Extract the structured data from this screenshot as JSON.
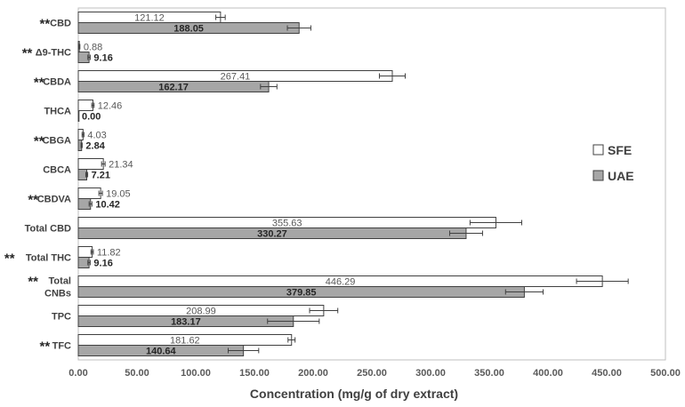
{
  "chart_data": {
    "type": "bar",
    "orientation": "horizontal",
    "categories": [
      {
        "label": "CBD",
        "significant": true
      },
      {
        "label": "Δ9-THC",
        "significant": true
      },
      {
        "label": "CBDA",
        "significant": true
      },
      {
        "label": "THCA",
        "significant": false
      },
      {
        "label": "CBGA",
        "significant": true
      },
      {
        "label": "CBCA",
        "significant": false
      },
      {
        "label": "CBDVA",
        "significant": true
      },
      {
        "label": "Total CBD",
        "significant": false
      },
      {
        "label": "Total THC",
        "significant": true
      },
      {
        "label": "Total\nCNBs",
        "significant": true
      },
      {
        "label": "TPC",
        "significant": false
      },
      {
        "label": "TFC",
        "significant": true
      }
    ],
    "significance_marker": "**",
    "series": [
      {
        "name": "SFE",
        "color": "#ffffff",
        "values": [
          121.12,
          0.88,
          267.41,
          12.46,
          4.03,
          21.34,
          19.05,
          355.63,
          11.82,
          446.29,
          208.99,
          181.62
        ],
        "value_labels": [
          "121.12",
          "0.88",
          "267.41",
          "12.46",
          "4.03",
          "21.34",
          "19.05",
          "355.63",
          "11.82",
          "446.29",
          "208.99",
          "181.62"
        ],
        "errors": [
          4,
          0.5,
          11,
          1,
          0.8,
          1.5,
          1.5,
          22,
          1,
          22,
          12,
          3
        ]
      },
      {
        "name": "UAE",
        "color": "#a6a6a6",
        "values": [
          188.05,
          9.16,
          162.17,
          0.0,
          2.84,
          7.21,
          10.42,
          330.27,
          9.16,
          379.85,
          183.17,
          140.64
        ],
        "value_labels": [
          "188.05",
          "9.16",
          "162.17",
          "0.00",
          "2.84",
          "7.21",
          "10.42",
          "330.27",
          "9.16",
          "379.85",
          "183.17",
          "140.64"
        ],
        "errors": [
          10,
          1,
          7,
          0,
          0.5,
          0.8,
          1.2,
          14,
          1,
          16,
          22,
          13
        ]
      }
    ],
    "xlabel": "Concentration (mg/g of dry extract)",
    "xlim": [
      0,
      500
    ],
    "xticks": [
      "0.00",
      "50.00",
      "100.00",
      "150.00",
      "200.00",
      "250.00",
      "300.00",
      "350.00",
      "400.00",
      "450.00",
      "500.00"
    ],
    "grid": false,
    "legend_position": "right"
  }
}
